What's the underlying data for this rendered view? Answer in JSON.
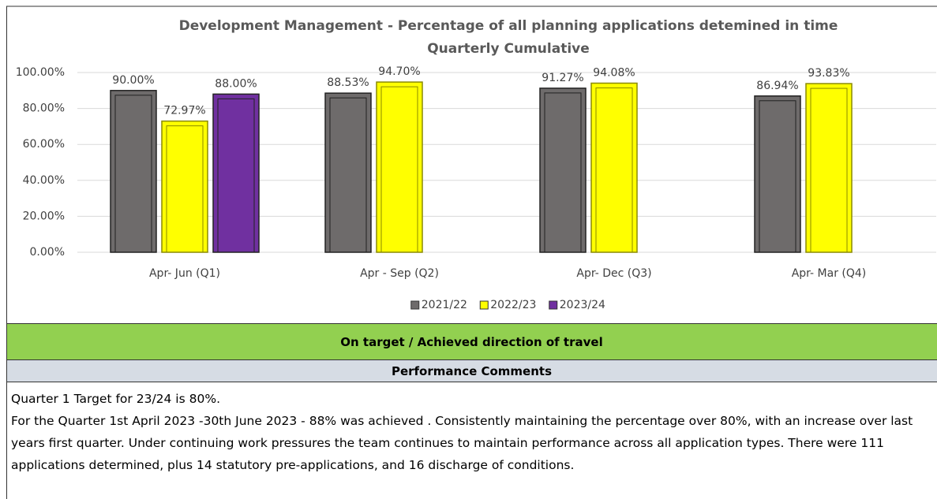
{
  "chart_data": {
    "type": "bar",
    "title": "Development Management - Percentage of all planning applications detemined in time",
    "subtitle": "Quarterly Cumulative",
    "categories": [
      "Apr- Jun  (Q1)",
      "Apr - Sep  (Q2)",
      "Apr- Dec  (Q3)",
      "Apr- Mar  (Q4)"
    ],
    "series": [
      {
        "name": "2021/22",
        "color": "#6e6b6b",
        "values": [
          90,
          88.53,
          91.27,
          86.94
        ],
        "value_labels": [
          "90.00%",
          "88.53%",
          "91.27%",
          "86.94%"
        ]
      },
      {
        "name": "2022/23",
        "color": "#ffff00",
        "values": [
          72.97,
          94.7,
          94.08,
          93.83
        ],
        "value_labels": [
          "72.97%",
          "94.70%",
          "94.08%",
          "93.83%"
        ]
      },
      {
        "name": "2023/24",
        "color": "#7030a0",
        "values": [
          88,
          null,
          null,
          null
        ],
        "value_labels": [
          "88.00%",
          null,
          null,
          null
        ]
      }
    ],
    "ylim": [
      0,
      100
    ],
    "yticks": [
      {
        "value": 0,
        "label": "0.00%"
      },
      {
        "value": 20,
        "label": "20.00%"
      },
      {
        "value": 40,
        "label": "40.00%"
      },
      {
        "value": 60,
        "label": "60.00%"
      },
      {
        "value": 80,
        "label": "80.00%"
      },
      {
        "value": 100,
        "label": "100.00%"
      }
    ],
    "grid": true,
    "legend": "bottom"
  },
  "status": "On target / Achieved direction of travel",
  "comments_heading": "Performance Comments",
  "comments": [
    "Quarter 1 Target for 23/24 is 80%.",
    "For the Quarter 1st April 2023 -30th June 2023 - 88% was achieved . Consistently maintaining the percentage over 80%, with an increase over last years first quarter. Under continuing work pressures the team continues to maintain performance across all application types.  There were 111 applications determined, plus 14 statutory pre-applications, and 16 discharge of conditions."
  ]
}
